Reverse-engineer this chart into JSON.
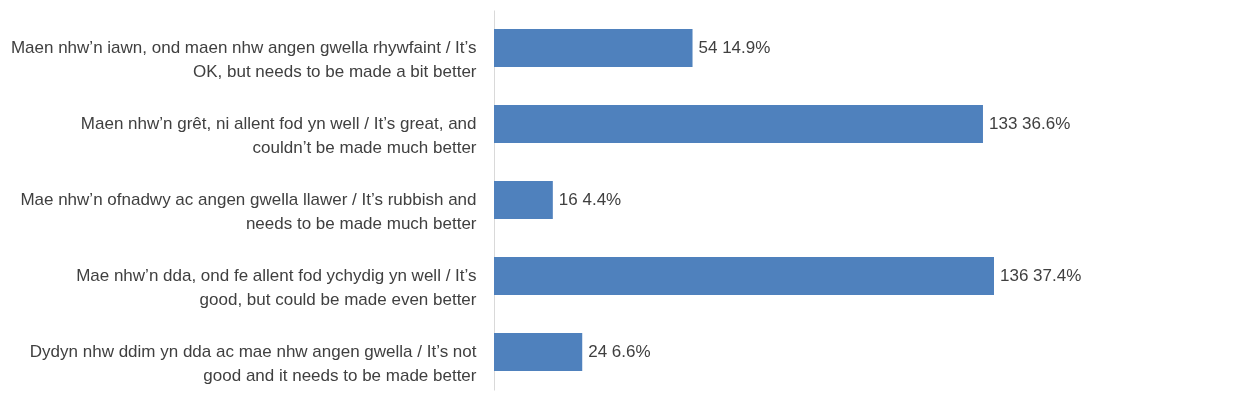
{
  "chart_data": {
    "type": "bar",
    "orientation": "horizontal",
    "categories": [
      "Maen nhw’n iawn, ond maen nhw angen gwella rhywfaint / It’s OK, but needs to be made a bit better",
      "Maen nhw’n grêt, ni allent fod yn well / It’s great, and couldn’t be made much better",
      "Mae nhw’n ofnadwy ac angen gwella llawer / It’s rubbish and needs to be made much better",
      "Mae nhw’n dda, ond fe allent fod ychydig yn well / It’s good, but could be made even better",
      "Dydyn nhw ddim yn dda ac mae nhw angen gwella / It’s not good and it needs to be made better"
    ],
    "values": [
      54,
      133,
      16,
      136,
      24
    ],
    "value_labels": [
      "54 14.9%",
      "133 36.6%",
      "16 4.4%",
      "136 37.4%",
      "24 6.6%"
    ],
    "color": "#4f81bd"
  }
}
